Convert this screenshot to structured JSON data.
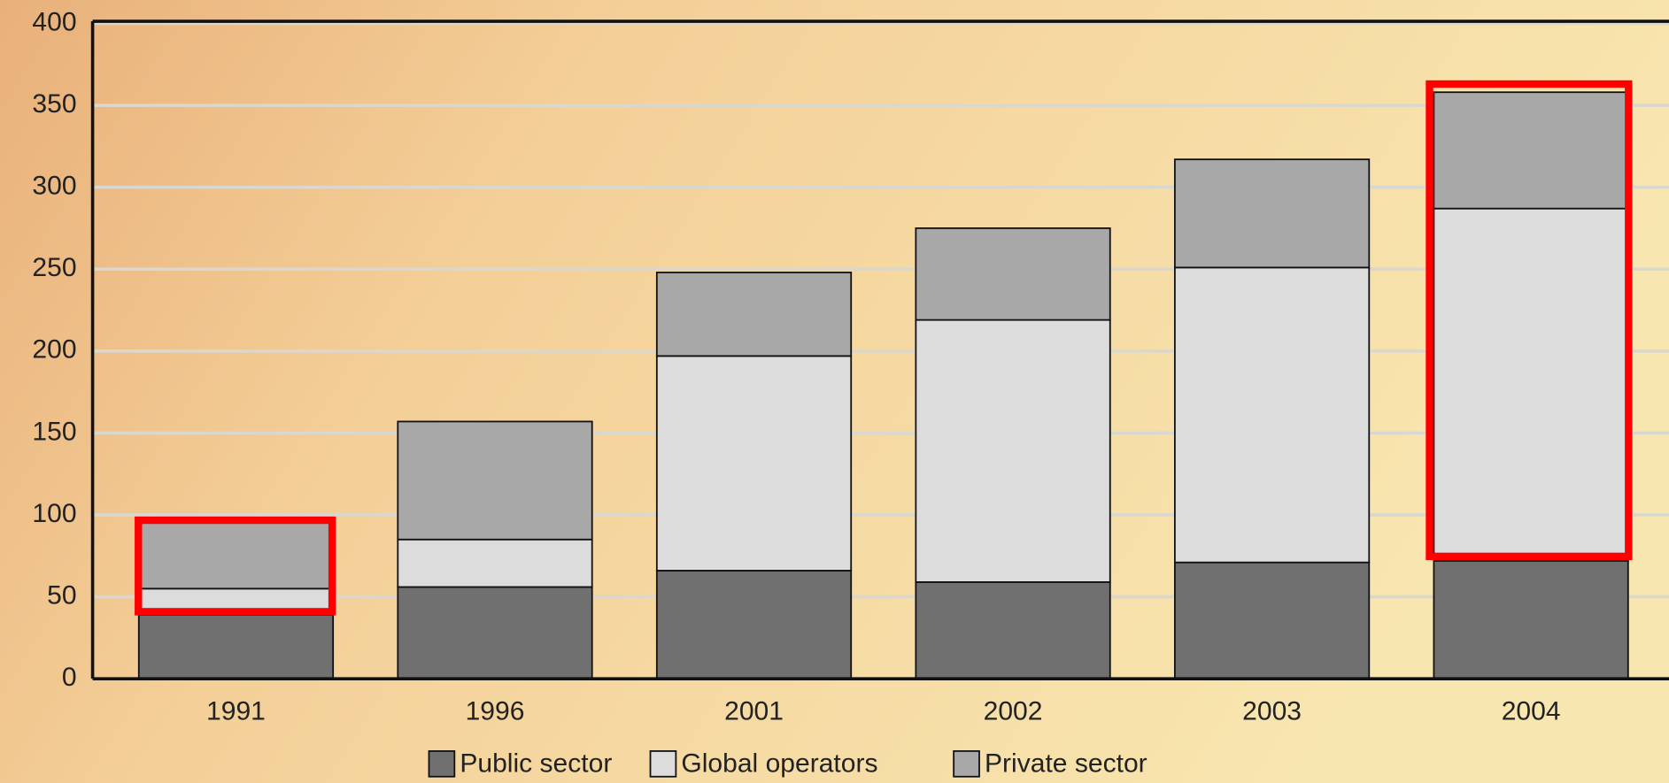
{
  "chart_data": {
    "type": "stacked_bar",
    "categories": [
      "1991",
      "1996",
      "2001",
      "2002",
      "2003",
      "2004"
    ],
    "series": [
      {
        "name": "Public sector",
        "color": "#707070",
        "values": [
          39,
          56,
          66,
          59,
          71,
          72
        ]
      },
      {
        "name": "Global operators",
        "color": "#dcdcdc",
        "values": [
          16,
          29,
          131,
          160,
          180,
          215
        ]
      },
      {
        "name": "Private sector",
        "color": "#a8a8a8",
        "values": [
          41,
          72,
          51,
          56,
          66,
          71
        ]
      }
    ],
    "ylim": [
      0,
      400
    ],
    "yticks": [
      0,
      50,
      100,
      150,
      200,
      250,
      300,
      350,
      400
    ],
    "grid": true,
    "legend": "bottom"
  }
}
